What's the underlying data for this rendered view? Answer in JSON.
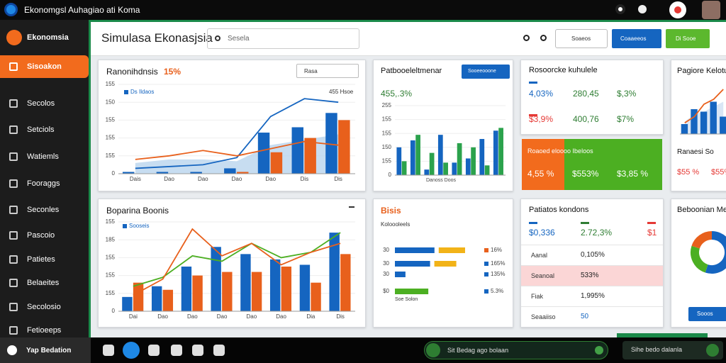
{
  "topbar": {
    "title": "Ekonomgsl Auhagiao ati Koma"
  },
  "sidebar": {
    "brand": "Ekonomsia",
    "items": [
      "Sisoakon",
      "Secolos",
      "Setciols",
      "Watiemls",
      "Fooraggs",
      "Seconles",
      "Pascoio",
      "Patietes",
      "Belaeites",
      "Secolosio",
      "Fetioeeps"
    ],
    "footer": "Yap Bedation"
  },
  "header": {
    "title": "Simulasa Ekonasjsia",
    "search": "Sesela",
    "select": "Soaeos",
    "button1": "Coaaeeos",
    "button2": "Di Sooe"
  },
  "card1": {
    "title": "Ranonihdnsis",
    "highlight": "15%",
    "select": "Rasa",
    "legend": [
      "Ds Ildaos",
      "455 Hsoe"
    ],
    "chart": {
      "categories": [
        "Dais",
        "Dao",
        "Dao",
        "Dao",
        "Dao",
        "Dis",
        "Dis"
      ],
      "ylim": [
        0,
        5
      ],
      "yticks": [
        {
          "value": 0,
          "label": "0"
        },
        {
          "value": 1,
          "label": "155"
        },
        {
          "value": 2,
          "label": "155"
        },
        {
          "value": 3,
          "label": "155"
        },
        {
          "value": 4,
          "label": "150"
        },
        {
          "value": 5,
          "label": "155"
        }
      ],
      "series": [
        {
          "kind": "area",
          "color": "#b9d4ee",
          "values": [
            0.6,
            0.8,
            0.8,
            0.7,
            1.6,
            1.9,
            2.2
          ]
        },
        {
          "kind": "bar",
          "color": "#1565c0",
          "values": [
            0.1,
            0.1,
            0.1,
            0.3,
            2.3,
            2.6,
            3.4
          ]
        },
        {
          "kind": "bar",
          "color": "#e8601c",
          "values": [
            0,
            0,
            0,
            0.1,
            1.2,
            2.0,
            3.0
          ]
        },
        {
          "kind": "line",
          "color": "#1565c0",
          "values": [
            0.3,
            0.4,
            0.5,
            0.9,
            3.2,
            4.2,
            4.0
          ]
        },
        {
          "kind": "line",
          "color": "#e8601c",
          "values": [
            0.8,
            1.0,
            1.3,
            1.0,
            1.4,
            1.8,
            1.6
          ]
        }
      ]
    }
  },
  "card2": {
    "title": "Patbooeleltmenar",
    "button": "Sooeeooone",
    "value": "455,.3%",
    "axis_label": "Danoss Doos",
    "chart": {
      "categories": [
        null,
        null,
        null,
        null,
        null,
        null,
        null,
        null
      ],
      "ylim": [
        0,
        5
      ],
      "yticks": [
        {
          "value": 0,
          "label": "0"
        },
        {
          "value": 1,
          "label": "155"
        },
        {
          "value": 2,
          "label": "150"
        },
        {
          "value": 3,
          "label": "155"
        },
        {
          "value": 4,
          "label": "155"
        },
        {
          "value": 5,
          "label": "255"
        }
      ],
      "series": [
        {
          "kind": "bar",
          "color": "#1565c0",
          "values": [
            2.0,
            2.5,
            0.4,
            2.9,
            0.9,
            1.2,
            2.6,
            3.2
          ]
        },
        {
          "kind": "bar",
          "color": "#2ba24c",
          "values": [
            1.0,
            2.9,
            1.6,
            0.9,
            2.3,
            2.0,
            0.7,
            3.4
          ]
        }
      ]
    }
  },
  "card3": {
    "title": "Rosoorcke kuhulele",
    "metrics": [
      [
        "4,03%",
        "280,45",
        "$,3%"
      ],
      [
        "$3,9%",
        "400,76",
        "$7%"
      ]
    ],
    "banner": {
      "title": "Roaoed eloooo Ibeloos",
      "values": [
        "4,55 %",
        "$553%",
        "$3,85 %"
      ]
    }
  },
  "card4": {
    "title": "Pagiore Kelotu",
    "label": "Ranaesi So",
    "values": [
      "$55 %",
      "$55%"
    ],
    "chart": {
      "categories": [
        null,
        null,
        null,
        null,
        null
      ],
      "ylim": [
        0,
        4
      ],
      "series": [
        {
          "kind": "area",
          "color": "#cfe0f3",
          "values": [
            1.0,
            1.6,
            1.8,
            2.2,
            2.6
          ]
        },
        {
          "kind": "bar",
          "color": "#1565c0",
          "values": [
            0.8,
            2.0,
            1.8,
            2.6,
            1.4
          ]
        },
        {
          "kind": "line",
          "color": "#e8601c",
          "values": [
            0.9,
            1.4,
            2.4,
            2.8,
            3.6
          ]
        }
      ]
    }
  },
  "card5": {
    "title": "Boparina Boonis",
    "legend": "Sooseis",
    "chart": {
      "categories": [
        "Dai",
        "Dao",
        "Dao",
        "Dao",
        "Dao",
        "Dao",
        "Dia",
        "Dis"
      ],
      "ylim": [
        0,
        5
      ],
      "yticks": [
        {
          "value": 0,
          "label": "0"
        },
        {
          "value": 1,
          "label": "155"
        },
        {
          "value": 2,
          "label": "155"
        },
        {
          "value": 3,
          "label": "155"
        },
        {
          "value": 4,
          "label": "185"
        },
        {
          "value": 5,
          "label": "155"
        }
      ],
      "series": [
        {
          "kind": "bar",
          "color": "#1565c0",
          "values": [
            0.8,
            1.4,
            2.5,
            3.6,
            3.2,
            2.9,
            2.6,
            4.4
          ]
        },
        {
          "kind": "bar",
          "color": "#e8601c",
          "values": [
            1.6,
            1.2,
            2.0,
            2.2,
            2.2,
            2.5,
            1.6,
            3.2
          ]
        },
        {
          "kind": "line",
          "color": "#4caf22",
          "values": [
            1.4,
            1.9,
            3.1,
            2.8,
            3.8,
            3.0,
            3.3,
            4.4
          ]
        },
        {
          "kind": "line",
          "color": "#e8601c",
          "values": [
            0.9,
            1.8,
            4.6,
            3.1,
            3.8,
            2.6,
            3.3,
            3.8
          ]
        }
      ]
    }
  },
  "card6": {
    "title": "Bisis",
    "subtitle": "Koloooleels",
    "footer": "Soe Solon",
    "chart": {
      "categories": [
        "30",
        "30",
        "30",
        "$0"
      ],
      "value_labels": [
        "16%",
        "165%",
        "135%",
        "5.3%"
      ],
      "xlim": [
        0,
        100
      ],
      "series": [
        {
          "color": "#1565c0",
          "values": [
            45,
            40,
            12,
            0
          ]
        },
        {
          "color": "#f2b318",
          "values": [
            30,
            25,
            0,
            0
          ]
        },
        {
          "color": "#4caf22",
          "values": [
            0,
            0,
            0,
            38
          ]
        }
      ]
    }
  },
  "card7": {
    "title": "Patiatos kondons",
    "kpis": [
      "$0,336",
      "2.72,3%",
      "$1"
    ],
    "rows": [
      [
        "Aanal",
        "0,105%"
      ],
      [
        "Seanoal",
        "533%"
      ],
      [
        "Fiak",
        "1,995%"
      ],
      [
        "Seaaiiso",
        "50"
      ]
    ]
  },
  "card8": {
    "title": "Beboonian Me",
    "button": "Sooos",
    "donut": {
      "values": [
        55,
        25,
        20
      ],
      "colors": [
        "#1565c0",
        "#4caf22",
        "#e8601c"
      ]
    }
  },
  "bottombar": {
    "pill1": "Sit Bedag ago bolaan",
    "pill2": "Sihe bedo dalanla"
  }
}
